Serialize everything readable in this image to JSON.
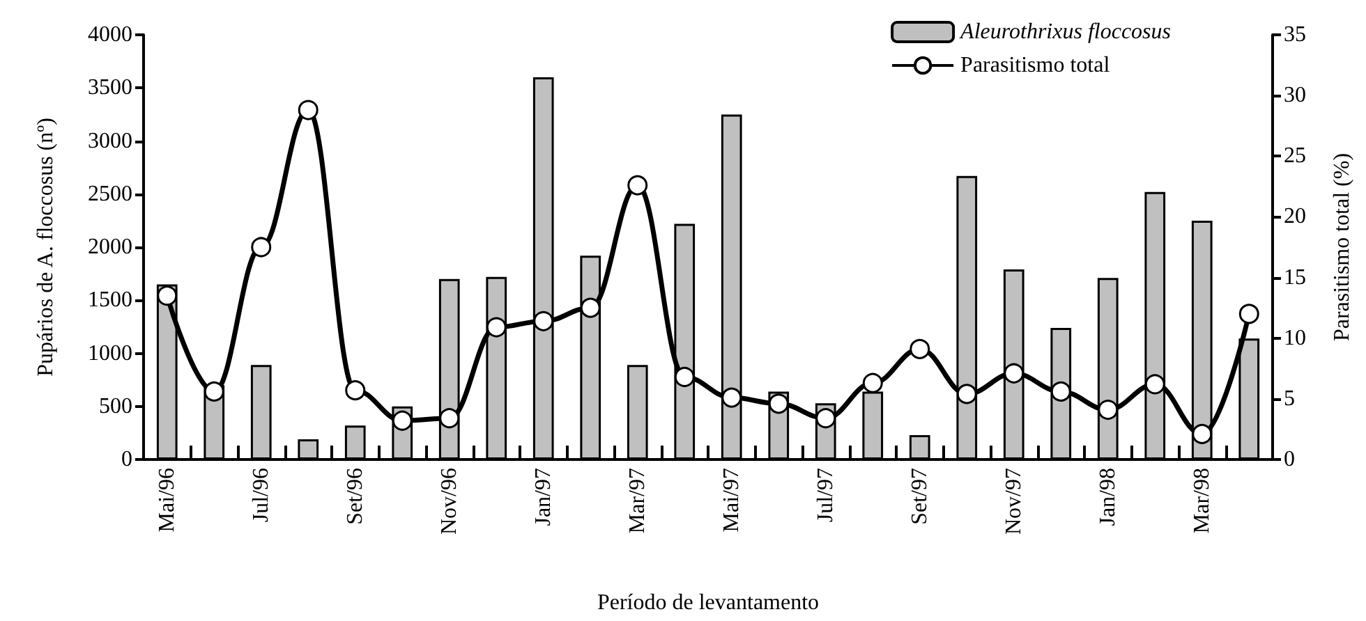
{
  "chart_data": {
    "type": "bar",
    "xlabel": "Período de levantamento",
    "ylabel": "Pupários de A. floccosus (nº)",
    "y2label": "Parasitismo total (%)",
    "categories": [
      "Mai/96",
      null,
      "Jul/96",
      null,
      "Set/96",
      null,
      "Nov/96",
      null,
      "Jan/97",
      null,
      "Mar/97",
      null,
      "Mai/97",
      null,
      "Jul/97",
      null,
      "Set/97",
      null,
      "Nov/97",
      null,
      "Jan/98",
      null,
      "Mar/98",
      null
    ],
    "series": [
      {
        "name": "Aleurothrixus floccosus",
        "color": "#c0c0c0",
        "values": [
          1650,
          700,
          890,
          190,
          320,
          500,
          1700,
          1720,
          3600,
          1920,
          890,
          2220,
          3250,
          640,
          530,
          640,
          230,
          2670,
          1790,
          1240,
          1710,
          2520,
          2250,
          1140
        ]
      },
      {
        "name": "Parasitismo total",
        "type": "line",
        "axis": "y2",
        "color": "#000000",
        "marker": "circle",
        "values": [
          13.5,
          5.6,
          17.5,
          28.8,
          5.7,
          3.2,
          3.4,
          10.9,
          11.4,
          12.5,
          22.6,
          6.8,
          5.1,
          4.6,
          3.4,
          6.3,
          9.1,
          5.4,
          7.1,
          5.6,
          4.1,
          6.2,
          2.1,
          12.0
        ]
      }
    ],
    "ylim": [
      0,
      4000
    ],
    "yticks": [
      0,
      500,
      1000,
      1500,
      2000,
      2500,
      3000,
      3500,
      4000
    ],
    "y2lim": [
      0,
      35
    ],
    "y2ticks": [
      0,
      5,
      10,
      15,
      20,
      25,
      30,
      35
    ],
    "grid": false,
    "legend": "top right"
  }
}
